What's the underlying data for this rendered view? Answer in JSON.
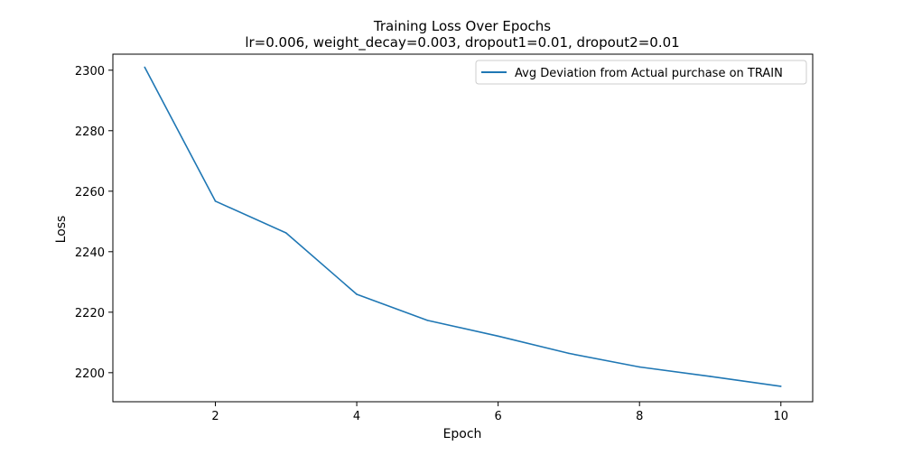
{
  "chart_data": {
    "type": "line",
    "title": "Training Loss Over Epochs",
    "subtitle": "lr=0.006, weight_decay=0.003, dropout1=0.01, dropout2=0.01",
    "xlabel": "Epoch",
    "ylabel": "Loss",
    "xlim": [
      0.55,
      10.45
    ],
    "ylim": [
      2190.4,
      2305.3
    ],
    "xticks": [
      2,
      4,
      6,
      8,
      10
    ],
    "yticks": [
      2200,
      2220,
      2240,
      2260,
      2280,
      2300
    ],
    "grid": false,
    "legend_position": "top-right",
    "series": [
      {
        "name": "Avg Deviation from Actual purchase on TRAIN",
        "color": "#1f77b4",
        "x": [
          1,
          2,
          3,
          4,
          5,
          6,
          7,
          8,
          9,
          10
        ],
        "y": [
          2301.0,
          2256.7,
          2246.2,
          2225.9,
          2217.3,
          2212.1,
          2206.4,
          2201.9,
          2198.8,
          2195.5
        ]
      }
    ]
  }
}
